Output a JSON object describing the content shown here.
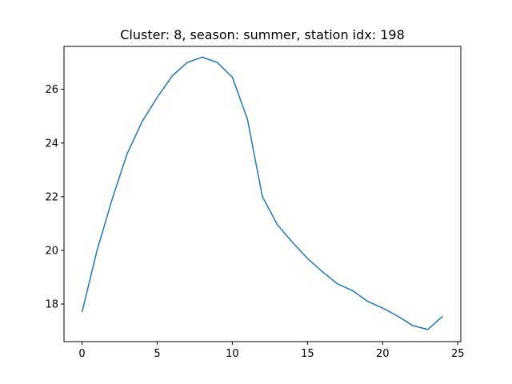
{
  "chart_data": {
    "type": "line",
    "title": "Cluster: 8, season: summer, station idx: 198",
    "xlabel": "",
    "ylabel": "",
    "xlim": [
      -1.2,
      25.2
    ],
    "ylim": [
      16.6,
      27.6
    ],
    "x_ticks": [
      0,
      5,
      10,
      15,
      20,
      25
    ],
    "y_ticks": [
      18,
      20,
      22,
      24,
      26
    ],
    "grid": false,
    "series": [
      {
        "color": "#1f77b4",
        "x": [
          0,
          1,
          2,
          3,
          4,
          5,
          6,
          7,
          8,
          9,
          10,
          11,
          12,
          13,
          14,
          15,
          16,
          17,
          18,
          19,
          20,
          21,
          22,
          23,
          24
        ],
        "values": [
          17.7,
          20.0,
          21.9,
          23.6,
          24.8,
          25.7,
          26.5,
          27.0,
          27.2,
          27.0,
          26.45,
          24.9,
          22.0,
          20.95,
          20.3,
          19.7,
          19.2,
          18.75,
          18.5,
          18.1,
          17.85,
          17.55,
          17.2,
          17.05,
          17.55
        ]
      }
    ]
  }
}
